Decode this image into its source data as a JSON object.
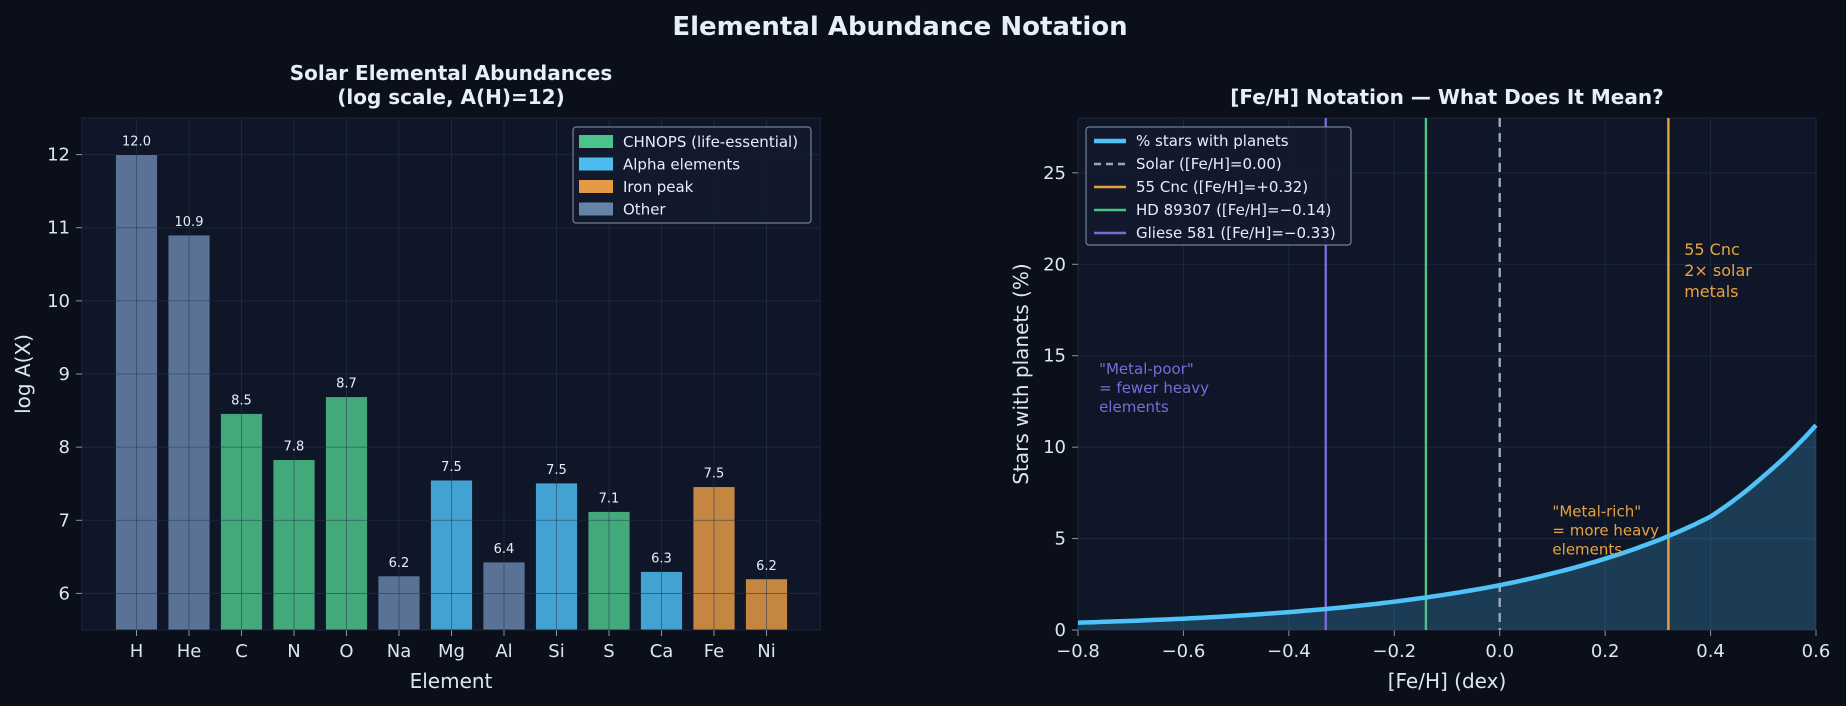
{
  "figure": {
    "title": "Elemental Abundance Notation"
  },
  "colors": {
    "background": "#0a0f1a",
    "panel": "#0f1628",
    "chnops": "#4cc38a",
    "alpha": "#4bbbf0",
    "iron_peak": "#e49a45",
    "other": "#6683a8",
    "curve": "#4fc3f7",
    "solar": "#9aa8bc",
    "cnc55": "#e8a23e",
    "hd89307": "#4cc38a",
    "gliese581": "#7a6bd8"
  },
  "chart_data": [
    {
      "type": "bar",
      "title": "Solar Elemental Abundances\n(log scale, A(H)=12)",
      "title_lines": [
        "Solar Elemental Abundances",
        "(log scale, A(H)=12)"
      ],
      "xlabel": "Element",
      "ylabel": "log A(X)",
      "ylim": [
        5.5,
        12.5
      ],
      "yticks": [
        6,
        7,
        8,
        9,
        10,
        11,
        12
      ],
      "ytick_labels": [
        "6",
        "7",
        "8",
        "9",
        "10",
        "11",
        "12"
      ],
      "grid": true,
      "legend_position": "top-right",
      "categories": [
        "H",
        "He",
        "C",
        "N",
        "O",
        "Na",
        "Mg",
        "Al",
        "Si",
        "S",
        "Ca",
        "Fe",
        "Ni"
      ],
      "values": [
        12.0,
        10.9,
        8.46,
        7.83,
        8.69,
        6.24,
        7.55,
        6.43,
        7.51,
        7.12,
        6.3,
        7.46,
        6.2
      ],
      "value_labels": [
        "12.0",
        "10.9",
        "8.5",
        "7.8",
        "8.7",
        "6.2",
        "7.5",
        "6.4",
        "7.5",
        "7.1",
        "6.3",
        "7.5",
        "6.2"
      ],
      "groups": [
        "other",
        "other",
        "chnops",
        "chnops",
        "chnops",
        "other",
        "alpha",
        "other",
        "alpha",
        "chnops",
        "alpha",
        "iron_peak",
        "iron_peak"
      ],
      "legend": [
        {
          "key": "chnops",
          "label": "CHNOPS (life-essential)"
        },
        {
          "key": "alpha",
          "label": "Alpha elements"
        },
        {
          "key": "iron_peak",
          "label": "Iron peak"
        },
        {
          "key": "other",
          "label": "Other"
        }
      ]
    },
    {
      "type": "line",
      "title": "[Fe/H] Notation — What Does It Mean?",
      "xlabel": "[Fe/H] (dex)",
      "ylabel": "Stars with planets (%)",
      "xlim": [
        -0.8,
        0.6
      ],
      "ylim": [
        0,
        28
      ],
      "xticks": [
        -0.8,
        -0.6,
        -0.4,
        -0.2,
        0.0,
        0.2,
        0.4,
        0.6
      ],
      "xtick_labels": [
        "−0.8",
        "−0.6",
        "−0.4",
        "−0.2",
        "0.0",
        "0.2",
        "0.4",
        "0.6"
      ],
      "yticks": [
        0,
        5,
        10,
        15,
        20,
        25
      ],
      "ytick_labels": [
        "0",
        "5",
        "10",
        "15",
        "20",
        "25"
      ],
      "grid": true,
      "legend_position": "top-left",
      "series": [
        {
          "name": "% stars with planets",
          "x": [
            -0.8,
            -0.7,
            -0.6,
            -0.5,
            -0.4,
            -0.3,
            -0.2,
            -0.1,
            0.0,
            0.1,
            0.2,
            0.3,
            0.4,
            0.5,
            0.6
          ],
          "y": [
            0.4,
            0.5,
            0.62,
            0.78,
            0.98,
            1.23,
            1.55,
            1.95,
            2.45,
            3.1,
            3.9,
            4.9,
            6.2,
            8.4,
            11.2
          ]
        }
      ],
      "vlines": [
        {
          "x": 0.0,
          "label": "Solar ([Fe/H]=0.00)",
          "style": "dashed",
          "color_key": "solar"
        },
        {
          "x": 0.32,
          "label": "55 Cnc ([Fe/H]=+0.32)",
          "style": "solid",
          "color_key": "cnc55"
        },
        {
          "x": -0.14,
          "label": "HD 89307 ([Fe/H]=−0.14)",
          "style": "solid",
          "color_key": "hd89307"
        },
        {
          "x": -0.33,
          "label": "Gliese 581 ([Fe/H]=−0.33)",
          "style": "solid",
          "color_key": "gliese581"
        }
      ],
      "annotations": [
        {
          "lines": [
            "55 Cnc",
            "2× solar",
            "metals"
          ],
          "x": 0.35,
          "y": 20.5,
          "color_key": "cnc55",
          "size": "big"
        },
        {
          "lines": [
            "\"Metal-poor\"",
            "= fewer heavy",
            "elements"
          ],
          "x": -0.76,
          "y": 14.0,
          "color_key": "gliese581",
          "size": "small"
        },
        {
          "lines": [
            "\"Metal-rich\"",
            "= more heavy",
            "elements"
          ],
          "x": 0.1,
          "y": 6.2,
          "color_key": "cnc55",
          "size": "small"
        }
      ]
    }
  ]
}
